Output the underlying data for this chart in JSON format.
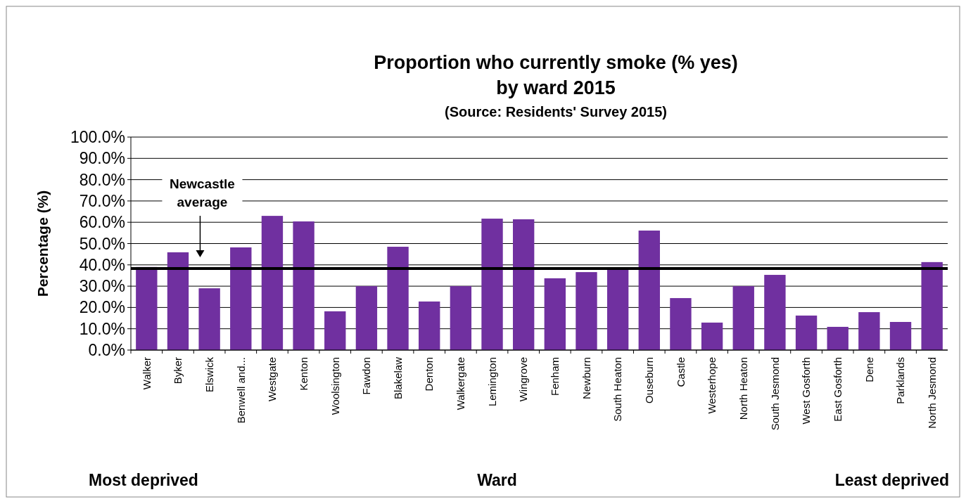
{
  "chart_data": {
    "type": "bar",
    "title": "Proportion who currently smoke (% yes)\nby ward 2015",
    "subtitle": "(Source: Residents' Survey 2015)",
    "xlabel": "Ward",
    "ylabel": "Percentage (%)",
    "categories": [
      "Walker",
      "Byker",
      "Elswick",
      "Benwell and...",
      "Westgate",
      "Kenton",
      "Woolsington",
      "Fawdon",
      "Blakelaw",
      "Denton",
      "Walkergate",
      "Lemington",
      "Wingrove",
      "Fenham",
      "Newburn",
      "South Heaton",
      "Ouseburn",
      "Castle",
      "Westerhope",
      "North Heaton",
      "South Jesmond",
      "West Gosforth",
      "East Gosforth",
      "Dene",
      "Parklands",
      "North Jesmond"
    ],
    "values": [
      39,
      45.9,
      29,
      48.2,
      63,
      60.4,
      18.2,
      30,
      48.5,
      22.8,
      30,
      61.7,
      61.4,
      33.7,
      36.6,
      38.6,
      56.1,
      24.4,
      12.9,
      30,
      35.3,
      16.2,
      10.9,
      17.8,
      13.2,
      41.3
    ],
    "color": "#7030a0",
    "ylim": [
      0,
      100
    ],
    "yticks": [
      {
        "value": 0,
        "label": "0.0%"
      },
      {
        "value": 10,
        "label": "10.0%"
      },
      {
        "value": 20,
        "label": "20.0%"
      },
      {
        "value": 30,
        "label": "30.0%"
      },
      {
        "value": 40,
        "label": "40.0%"
      },
      {
        "value": 50,
        "label": "50.0%"
      },
      {
        "value": 60,
        "label": "60.0%"
      },
      {
        "value": 70,
        "label": "70.0%"
      },
      {
        "value": 80,
        "label": "80.0%"
      },
      {
        "value": 90,
        "label": "90.0%"
      },
      {
        "value": 100,
        "label": "100.0%"
      }
    ],
    "grid": "y",
    "ref_lines": [
      {
        "axis": "y",
        "value": 38.3,
        "label": "Newcastle\naverage",
        "color": "#000000"
      }
    ],
    "annotations": [
      "Most deprived",
      "Least deprived"
    ]
  }
}
